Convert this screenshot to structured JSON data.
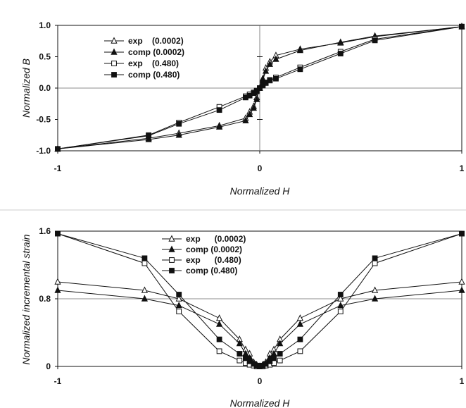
{
  "chart_data": [
    {
      "type": "line",
      "title": "",
      "xlabel": "Normalized H",
      "ylabel": "Normalized B",
      "xlim": [
        -1,
        1
      ],
      "ylim": [
        -1,
        1
      ],
      "xticks": [
        -1,
        0,
        1
      ],
      "yticks": [
        -1.0,
        -0.5,
        0.0,
        0.5,
        1.0
      ],
      "xtick_labels": [
        "-1",
        "0",
        "1"
      ],
      "ytick_labels": [
        "-1.0",
        "-0.5",
        "0.0",
        "0.5",
        "1.0"
      ],
      "grid": false,
      "legend_position": "top-left",
      "series": [
        {
          "name": "exp    (0.0002)",
          "marker": "open-triangle",
          "x": [
            -1,
            -0.55,
            -0.4,
            -0.2,
            -0.07,
            -0.05,
            -0.03,
            -0.015,
            0,
            0.015,
            0.03,
            0.05,
            0.08,
            0.2,
            0.4,
            0.57,
            1
          ],
          "y": [
            -0.97,
            -0.8,
            -0.72,
            -0.6,
            -0.48,
            -0.38,
            -0.29,
            -0.15,
            0,
            0.15,
            0.32,
            0.42,
            0.52,
            0.62,
            0.72,
            0.82,
            0.98
          ]
        },
        {
          "name": "comp (0.0002)",
          "marker": "filled-triangle",
          "x": [
            -1,
            -0.55,
            -0.4,
            -0.2,
            -0.07,
            -0.05,
            -0.03,
            -0.015,
            0,
            0.015,
            0.03,
            0.05,
            0.08,
            0.2,
            0.4,
            0.57,
            1
          ],
          "y": [
            -0.97,
            -0.82,
            -0.75,
            -0.62,
            -0.52,
            -0.42,
            -0.32,
            -0.18,
            0,
            0.13,
            0.27,
            0.38,
            0.46,
            0.6,
            0.73,
            0.83,
            0.98
          ]
        },
        {
          "name": "exp    (0.480)",
          "marker": "open-square",
          "x": [
            -1,
            -0.55,
            -0.4,
            -0.2,
            -0.07,
            -0.05,
            -0.03,
            -0.015,
            0,
            0.015,
            0.03,
            0.05,
            0.08,
            0.2,
            0.4,
            0.57,
            1
          ],
          "y": [
            -0.97,
            -0.75,
            -0.55,
            -0.3,
            -0.13,
            -0.1,
            -0.07,
            -0.04,
            0,
            0.04,
            0.08,
            0.12,
            0.17,
            0.33,
            0.58,
            0.78,
            0.98
          ]
        },
        {
          "name": "comp (0.480)",
          "marker": "filled-square",
          "x": [
            -1,
            -0.55,
            -0.4,
            -0.2,
            -0.07,
            -0.05,
            -0.03,
            -0.015,
            0,
            0.015,
            0.03,
            0.05,
            0.08,
            0.2,
            0.4,
            0.57,
            1
          ],
          "y": [
            -0.97,
            -0.76,
            -0.57,
            -0.35,
            -0.15,
            -0.12,
            -0.08,
            -0.05,
            0,
            0.05,
            0.09,
            0.13,
            0.15,
            0.3,
            0.55,
            0.76,
            0.98
          ]
        }
      ]
    },
    {
      "type": "line",
      "title": "",
      "xlabel": "Normalized H",
      "ylabel": "Normalized incremental strain",
      "xlim": [
        -1,
        1
      ],
      "ylim": [
        0,
        1.6
      ],
      "xticks": [
        -1,
        0,
        1
      ],
      "yticks": [
        0,
        0.8,
        1.6
      ],
      "xtick_labels": [
        "-1",
        "0",
        "1"
      ],
      "ytick_labels": [
        "0",
        "0.8",
        "1.6"
      ],
      "grid": false,
      "legend_position": "top-center",
      "series": [
        {
          "name": "exp      (0.0002)",
          "marker": "open-triangle",
          "x": [
            -1,
            -0.57,
            -0.4,
            -0.2,
            -0.1,
            -0.07,
            -0.05,
            -0.03,
            -0.015,
            0,
            0.015,
            0.03,
            0.05,
            0.07,
            0.1,
            0.2,
            0.4,
            0.57,
            1
          ],
          "y": [
            1.0,
            0.9,
            0.8,
            0.57,
            0.32,
            0.2,
            0.15,
            0.05,
            0.02,
            0,
            0.02,
            0.05,
            0.15,
            0.2,
            0.32,
            0.57,
            0.8,
            0.9,
            1.0
          ]
        },
        {
          "name": "comp (0.0002)",
          "marker": "filled-triangle",
          "x": [
            -1,
            -0.57,
            -0.4,
            -0.2,
            -0.1,
            -0.07,
            -0.05,
            -0.03,
            -0.015,
            0,
            0.015,
            0.03,
            0.05,
            0.07,
            0.1,
            0.2,
            0.4,
            0.57,
            1
          ],
          "y": [
            0.9,
            0.8,
            0.72,
            0.5,
            0.27,
            0.15,
            0.1,
            0.03,
            0.01,
            0,
            0.01,
            0.03,
            0.1,
            0.15,
            0.27,
            0.5,
            0.72,
            0.8,
            0.9
          ]
        },
        {
          "name": "exp      (0.480)",
          "marker": "open-square",
          "x": [
            -1,
            -0.57,
            -0.4,
            -0.2,
            -0.1,
            -0.07,
            -0.05,
            -0.03,
            -0.015,
            0,
            0.015,
            0.03,
            0.05,
            0.07,
            0.1,
            0.2,
            0.4,
            0.57,
            1
          ],
          "y": [
            1.57,
            1.22,
            0.65,
            0.18,
            0.07,
            0.04,
            0.02,
            0.01,
            0.0,
            0,
            0.0,
            0.01,
            0.02,
            0.04,
            0.07,
            0.18,
            0.65,
            1.22,
            1.57
          ]
        },
        {
          "name": "comp (0.480)",
          "marker": "filled-square",
          "x": [
            -1,
            -0.57,
            -0.4,
            -0.2,
            -0.1,
            -0.07,
            -0.05,
            -0.03,
            -0.015,
            0,
            0.015,
            0.03,
            0.05,
            0.07,
            0.1,
            0.2,
            0.4,
            0.57,
            1
          ],
          "y": [
            1.57,
            1.28,
            0.85,
            0.32,
            0.15,
            0.1,
            0.06,
            0.03,
            0.01,
            0,
            0.01,
            0.03,
            0.06,
            0.1,
            0.15,
            0.32,
            0.85,
            1.28,
            1.57
          ]
        }
      ]
    }
  ]
}
